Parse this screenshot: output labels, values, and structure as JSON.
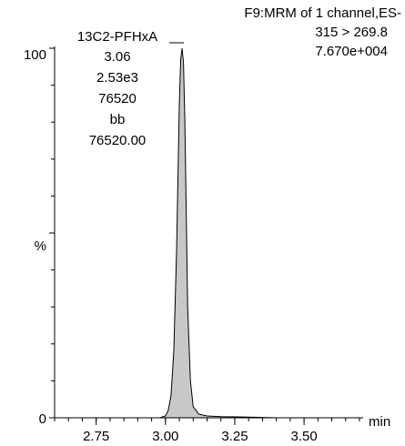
{
  "header": {
    "line1": "F9:MRM of 1 channel,ES-",
    "line2": "315 > 269.8",
    "line3": "7.670e+004"
  },
  "peak_label": {
    "name": "13C2-PFHxA",
    "retention_time": "3.06",
    "height": "2.53e3",
    "area": "76520",
    "integration_type": "bb",
    "area_precise": "76520.00"
  },
  "axis": {
    "y_unit": "%",
    "y_max_label": "100",
    "y_min_label": "0",
    "x_unit": "min"
  },
  "chart_data": {
    "type": "area",
    "title": "F9:MRM of 1 channel,ES-",
    "xlabel": "min",
    "ylabel": "%",
    "xlim": [
      2.6,
      3.7
    ],
    "ylim": [
      0,
      100
    ],
    "x_ticks": [
      "2.75",
      "3.00",
      "3.25",
      "3.50"
    ],
    "x_tick_values": [
      2.75,
      3.0,
      3.25,
      3.5
    ],
    "y_ticks": [
      "0",
      "100"
    ],
    "y_tick_values": [
      0,
      100
    ],
    "fill_color": "#c8c8c8",
    "line_color": "#000000",
    "grid": false,
    "series": [
      {
        "x": [
          2.6,
          2.7,
          2.8,
          2.9,
          2.98,
          3.0,
          3.01,
          3.02,
          3.03,
          3.04,
          3.05,
          3.055,
          3.06,
          3.065,
          3.07,
          3.075,
          3.08,
          3.09,
          3.1,
          3.12,
          3.15,
          3.2,
          3.3,
          3.4,
          3.5,
          3.6,
          3.7
        ],
        "y": [
          0,
          0,
          0,
          0,
          0,
          0.5,
          2,
          6,
          18,
          45,
          85,
          97,
          100,
          96,
          80,
          55,
          30,
          10,
          3,
          1,
          0.5,
          0.3,
          0.2,
          0,
          0,
          0,
          0
        ]
      }
    ]
  }
}
